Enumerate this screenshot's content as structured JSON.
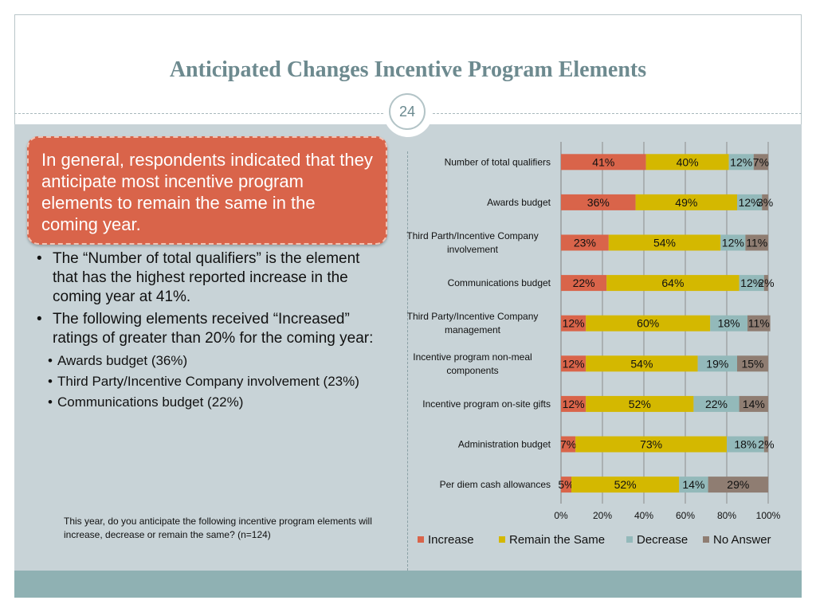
{
  "slide": {
    "title": "Anticipated Changes Incentive Program Elements",
    "page_number": "24",
    "callout": "In general, respondents indicated that they anticipate most incentive program elements to remain the same in the coming year.",
    "bullets": [
      "The “Number of total qualifiers” is the element that has the highest reported increase in the coming year at 41%.",
      "The following elements received “Increased” ratings of greater than 20% for the coming year:"
    ],
    "sub_bullets": [
      "Awards budget (36%)",
      "Third Party/Incentive Company involvement (23%)",
      "Communications budget (22%)"
    ],
    "question": "This year, do you anticipate the following incentive program elements will increase, decrease or remain the same? (n=124)"
  },
  "chart_data": {
    "type": "bar",
    "orientation": "horizontal",
    "stacked": "percent",
    "categories": [
      [
        "Number of total qualifiers"
      ],
      [
        "Awards budget"
      ],
      [
        "Third Parth/Incentive Company",
        "involvement"
      ],
      [
        "Communications budget"
      ],
      [
        "Third Party/Incentive Company",
        "management"
      ],
      [
        "Incentive program non-meal",
        "components"
      ],
      [
        "Incentive program on-site gifts"
      ],
      [
        "Administration budget"
      ],
      [
        "Per diem cash allowances"
      ]
    ],
    "series": [
      {
        "name": "Increase",
        "color": "#d9644a",
        "values": [
          41,
          36,
          23,
          22,
          12,
          12,
          12,
          7,
          5
        ]
      },
      {
        "name": "Remain the Same",
        "color": "#d4b800",
        "values": [
          40,
          49,
          54,
          64,
          60,
          54,
          52,
          73,
          52
        ]
      },
      {
        "name": "Decrease",
        "color": "#93b9ba",
        "values": [
          12,
          12,
          12,
          12,
          18,
          19,
          22,
          18,
          14
        ]
      },
      {
        "name": "No Answer",
        "color": "#8f7d72",
        "values": [
          7,
          3,
          11,
          2,
          11,
          15,
          14,
          2,
          29
        ]
      }
    ],
    "xlim": [
      0,
      100
    ],
    "xticks": [
      "0%",
      "20%",
      "40%",
      "60%",
      "80%",
      "100%"
    ],
    "legend_position": "bottom",
    "grid": true
  }
}
